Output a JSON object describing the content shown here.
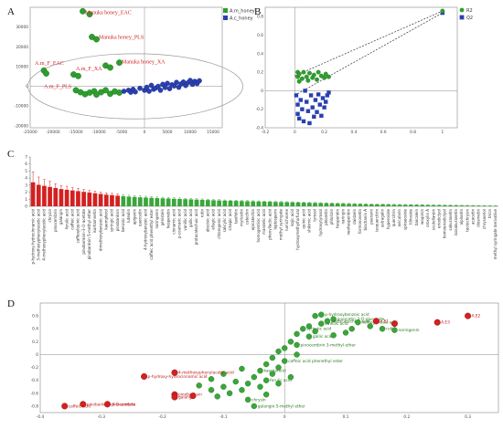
{
  "chart_data": [
    {
      "panel": "A",
      "type": "scatter",
      "xlim": [
        -25000,
        17000
      ],
      "ylim": [
        -21000,
        40000
      ],
      "xticks": [
        -25000,
        -20000,
        -15000,
        -10000,
        -5000,
        0,
        5000,
        10000,
        15000
      ],
      "yticks": [
        -20000,
        -10000,
        0,
        10000,
        20000,
        30000
      ],
      "ellipse": {
        "cx": -2000,
        "cy": 0,
        "rx": 23500,
        "ry": 16500
      },
      "legend": [
        {
          "name": "A.m_honey",
          "color": "#2e9e2e"
        },
        {
          "name": "A.c_honey",
          "color": "#2a3fb0"
        }
      ],
      "annotations": [
        {
          "text": "Manuka honey_EAC",
          "x": -13000,
          "y": 36500
        },
        {
          "text": "Manuka honey_PLS",
          "x": -10000,
          "y": 24000
        },
        {
          "text": "Manuka honey_XA",
          "x": -5000,
          "y": 11500
        },
        {
          "text": "A.m_F_EAC",
          "x": -24000,
          "y": 11000
        },
        {
          "text": "A.m_F_XA",
          "x": -15000,
          "y": 8000
        },
        {
          "text": "A.m_F_PLS",
          "x": -22000,
          "y": -1000
        }
      ],
      "series": [
        {
          "name": "A.m_honey",
          "points": [
            [
              -13500,
              38000
            ],
            [
              -12000,
              36500
            ],
            [
              -11500,
              25000
            ],
            [
              -10500,
              23800
            ],
            [
              -8500,
              10500
            ],
            [
              -7500,
              9500
            ],
            [
              -5500,
              12000
            ],
            [
              -22000,
              8000
            ],
            [
              -21500,
              6500
            ],
            [
              -15500,
              6000
            ],
            [
              -14500,
              5200
            ],
            [
              -15000,
              -2000
            ],
            [
              -14000,
              -3000
            ],
            [
              -13000,
              -4000
            ],
            [
              -12000,
              -3200
            ],
            [
              -11000,
              -2500
            ],
            [
              -10500,
              -4200
            ],
            [
              -9500,
              -3000
            ],
            [
              -8500,
              -2000
            ],
            [
              -7500,
              -3800
            ],
            [
              -6500,
              -2600
            ],
            [
              -5500,
              -3200
            ]
          ]
        },
        {
          "name": "A.c_honey",
          "points": [
            [
              -4500,
              -2500
            ],
            [
              -3500,
              -2000
            ],
            [
              -3000,
              -3000
            ],
            [
              -2500,
              -1500
            ],
            [
              -2000,
              -2800
            ],
            [
              -1000,
              -1000
            ],
            [
              0,
              -2000
            ],
            [
              500,
              -500
            ],
            [
              1000,
              -2500
            ],
            [
              1500,
              500
            ],
            [
              2000,
              -1500
            ],
            [
              2500,
              -800
            ],
            [
              3000,
              0
            ],
            [
              3500,
              -2000
            ],
            [
              4000,
              1000
            ],
            [
              4500,
              -600
            ],
            [
              5000,
              1500
            ],
            [
              5500,
              -1200
            ],
            [
              6000,
              800
            ],
            [
              6500,
              200
            ],
            [
              7000,
              2000
            ],
            [
              7500,
              -500
            ],
            [
              8000,
              1200
            ],
            [
              8500,
              2200
            ],
            [
              9000,
              400
            ],
            [
              9500,
              1800
            ],
            [
              10000,
              3000
            ],
            [
              10500,
              1000
            ],
            [
              11000,
              2500
            ],
            [
              11500,
              1400
            ],
            [
              12000,
              2800
            ]
          ]
        }
      ]
    },
    {
      "panel": "B",
      "type": "scatter",
      "xlim": [
        -0.2,
        1.1
      ],
      "ylim": [
        -0.4,
        0.9
      ],
      "xticks": [
        -0.2,
        0,
        0.2,
        0.4,
        0.6,
        0.8,
        1
      ],
      "yticks": [
        -0.4,
        -0.2,
        0,
        0.2,
        0.4,
        0.6,
        0.8
      ],
      "legend": [
        {
          "name": "R2",
          "color": "#2e9e2e"
        },
        {
          "name": "Q2",
          "color": "#2a3fb0"
        }
      ],
      "series": [
        {
          "name": "R2",
          "points": [
            [
              1.0,
              0.86
            ],
            [
              0.02,
              0.2
            ],
            [
              0.02,
              0.15
            ],
            [
              0.03,
              0.1
            ],
            [
              0.03,
              0.18
            ],
            [
              0.05,
              0.13
            ],
            [
              0.06,
              0.2
            ],
            [
              0.08,
              0.15
            ],
            [
              0.09,
              0.11
            ],
            [
              0.1,
              0.19
            ],
            [
              0.12,
              0.14
            ],
            [
              0.13,
              0.17
            ],
            [
              0.15,
              0.12
            ],
            [
              0.16,
              0.2
            ],
            [
              0.18,
              0.16
            ],
            [
              0.2,
              0.14
            ],
            [
              0.21,
              0.18
            ],
            [
              0.23,
              0.15
            ]
          ]
        },
        {
          "name": "Q2",
          "points": [
            [
              1.0,
              0.84
            ],
            [
              0.01,
              -0.05
            ],
            [
              0.02,
              -0.15
            ],
            [
              0.02,
              -0.25
            ],
            [
              0.03,
              -0.3
            ],
            [
              0.04,
              -0.1
            ],
            [
              0.05,
              -0.2
            ],
            [
              0.06,
              -0.33
            ],
            [
              0.07,
              0.0
            ],
            [
              0.08,
              -0.12
            ],
            [
              0.09,
              -0.22
            ],
            [
              0.1,
              -0.35
            ],
            [
              0.11,
              -0.05
            ],
            [
              0.12,
              -0.18
            ],
            [
              0.13,
              -0.28
            ],
            [
              0.14,
              -0.1
            ],
            [
              0.15,
              -0.23
            ],
            [
              0.16,
              -0.04
            ],
            [
              0.17,
              -0.15
            ],
            [
              0.18,
              -0.27
            ],
            [
              0.19,
              -0.08
            ],
            [
              0.2,
              -0.18
            ],
            [
              0.21,
              -0.12
            ],
            [
              0.22,
              -0.05
            ],
            [
              0.23,
              -0.02
            ]
          ]
        }
      ]
    },
    {
      "panel": "C",
      "type": "bar",
      "ylim": [
        0,
        7
      ],
      "yticks": [
        0,
        1,
        2,
        3,
        4,
        5,
        6,
        7
      ],
      "colors": {
        "high": "#d42020",
        "low": "#3aa63a"
      },
      "categories": [
        "p-hydroxy-hydrocinnamic acid",
        "3-methoxyphenylacetic acid",
        "4-methoxyphenylacetic acid",
        "chrysin",
        "pinocembrin",
        "galangin",
        "ferulic acid",
        "caffeic acid",
        "caffeoylquinic acid",
        "pinobanksin-3-O-acetate",
        "pinobanksin 5-methyl ether",
        "isorhamnetin",
        "dimethoxybenzoic acid",
        "kaempferol",
        "syringic acid",
        "pinobanksin",
        "benzoic acid",
        "luteolin",
        "apigenin",
        "quercetin",
        "4-hydroxybenzoic acid",
        "caffeic acid phenethyl ester",
        "naringenin",
        "genistein",
        "hesperetin",
        "cinnamic acid",
        "p-coumaric acid",
        "vanillic acid",
        "gallic acid",
        "protocatechuic acid",
        "rutin",
        "abscisic acid",
        "ellagic acid",
        "chlorogenic acid",
        "salicylic acid",
        "sinapic acid",
        "taxifolin",
        "myricetin",
        "catechin",
        "epicatechin",
        "homogentisic acid",
        "mandelic acid",
        "phenyllactic acid",
        "leptosperin",
        "methyl syringate",
        "lumichrome",
        "kojic acid",
        "hydroxymethylfurfural",
        "quinic acid",
        "shikimic acid",
        "tyrosol",
        "hydroxytyrosol",
        "phloretin",
        "phlorizin",
        "hesperidin",
        "naringin",
        "neohesperidin",
        "daidzein",
        "formononetin",
        "biochanin A",
        "puerarin",
        "isoquercitrin",
        "astragalin",
        "hyperoside",
        "quercitrin",
        "avicularin",
        "spiraeoside",
        "tiliroside",
        "baicalein",
        "wogonin",
        "oroxylin A",
        "scutellarein",
        "eriodictyol",
        "homoeriodictyol",
        "sakuranetin",
        "isosakuranetin",
        "alpinetin",
        "tectochrysin",
        "acacetin",
        "diosmetin",
        "chrysoeriol",
        "tricin",
        "methyl syringate derivative"
      ],
      "values": [
        3.4,
        3.05,
        2.9,
        2.75,
        2.6,
        2.45,
        2.35,
        2.25,
        2.15,
        2.05,
        1.95,
        1.85,
        1.75,
        1.65,
        1.58,
        1.5,
        1.43,
        1.37,
        1.32,
        1.28,
        1.24,
        1.2,
        1.16,
        1.13,
        1.1,
        1.07,
        1.04,
        1.01,
        0.98,
        0.95,
        0.92,
        0.89,
        0.86,
        0.83,
        0.8,
        0.78,
        0.76,
        0.74,
        0.72,
        0.7,
        0.68,
        0.66,
        0.64,
        0.62,
        0.6,
        0.58,
        0.56,
        0.54,
        0.52,
        0.5,
        0.48,
        0.46,
        0.44,
        0.42,
        0.4,
        0.38,
        0.36,
        0.34,
        0.32,
        0.3,
        0.28,
        0.27,
        0.26,
        0.25,
        0.24,
        0.23,
        0.22,
        0.21,
        0.2,
        0.19,
        0.18,
        0.17,
        0.16,
        0.15,
        0.14,
        0.13,
        0.12,
        0.11,
        0.1,
        0.09,
        0.08,
        0.07,
        0.06
      ],
      "errors": [
        1.5,
        1.1,
        0.9,
        0.8,
        0.6,
        0.5,
        0.5,
        0.4,
        0.4,
        0.35,
        0.3,
        0.3,
        0.28,
        0.25,
        0.25,
        0.22,
        0.22,
        0.2,
        0.2,
        0.18,
        0.18,
        0.17,
        0.16,
        0.15,
        0.15,
        0.14,
        0.14,
        0.13,
        0.13,
        0.12,
        0.12,
        0.12,
        0.11,
        0.11,
        0.1,
        0.1,
        0.1,
        0.1,
        0.09,
        0.09,
        0.09,
        0.08,
        0.08,
        0.08,
        0.08,
        0.07,
        0.07,
        0.07,
        0.07,
        0.06,
        0.06,
        0.06,
        0.06,
        0.06,
        0.05,
        0.05,
        0.05,
        0.05,
        0.05,
        0.05,
        0.04,
        0.04,
        0.04,
        0.04,
        0.04,
        0.04,
        0.04,
        0.03,
        0.03,
        0.03,
        0.03,
        0.03,
        0.03,
        0.03,
        0.03,
        0.02,
        0.02,
        0.02,
        0.02,
        0.02,
        0.02,
        0.02,
        0.02
      ],
      "high_count": 16
    },
    {
      "panel": "D",
      "type": "scatter",
      "xlim": [
        -0.4,
        0.35
      ],
      "ylim": [
        -0.9,
        0.8
      ],
      "xticks": [
        -0.4,
        -0.3,
        -0.2,
        -0.1,
        0,
        0.1,
        0.2,
        0.3
      ],
      "yticks": [
        -0.8,
        -0.6,
        -0.4,
        -0.2,
        0,
        0.2,
        0.4,
        0.6
      ],
      "series": [
        {
          "name": "red",
          "color": "#d42020",
          "points": [
            [
              0.3,
              0.6,
              "A.E2"
            ],
            [
              0.25,
              0.5,
              "A.E3"
            ],
            [
              0.15,
              0.52,
              "A.E1"
            ],
            [
              0.18,
              0.48,
              ""
            ],
            [
              -0.18,
              -0.28,
              "4-methoxyphenylacetic acid"
            ],
            [
              -0.23,
              -0.34,
              "p-hydroxy-hydrocinnamic acid"
            ],
            [
              -0.18,
              -0.62,
              "pinobanksin"
            ],
            [
              -0.18,
              -0.66,
              "galangin"
            ],
            [
              -0.15,
              -0.64,
              ""
            ],
            [
              -0.33,
              -0.77,
              "pinobanksin-3-O-acetate"
            ],
            [
              -0.29,
              -0.77,
              "pinocembrin"
            ],
            [
              -0.36,
              -0.8,
              "caffeic acid"
            ]
          ]
        },
        {
          "name": "green",
          "color": "#3aa63a",
          "points": [
            [
              0.06,
              0.62,
              "p-hydroxybenzoic acid"
            ],
            [
              0.05,
              0.6,
              ""
            ],
            [
              0.08,
              0.55,
              "quercetin 3-O-glucoside"
            ],
            [
              0.07,
              0.52,
              "protocatechuic acid"
            ],
            [
              0.06,
              0.48,
              "vanillic acid"
            ],
            [
              0.04,
              0.44,
              ""
            ],
            [
              0.03,
              0.4,
              "syringic acid"
            ],
            [
              0.05,
              0.36,
              ""
            ],
            [
              0.02,
              0.32,
              ""
            ],
            [
              0.04,
              0.28,
              "gallic acid"
            ],
            [
              0.12,
              0.5,
              "homogentisic acid"
            ],
            [
              0.14,
              0.44,
              ""
            ],
            [
              0.16,
              0.4,
              "rutin"
            ],
            [
              0.18,
              0.38,
              "naringenin"
            ],
            [
              0.1,
              0.34,
              ""
            ],
            [
              0.08,
              0.3,
              ""
            ],
            [
              0.11,
              0.4,
              ""
            ],
            [
              0.01,
              0.2,
              ""
            ],
            [
              0.02,
              0.15,
              "pinocembrin 3-methyl ether"
            ],
            [
              0.0,
              0.1,
              ""
            ],
            [
              -0.01,
              0.05,
              ""
            ],
            [
              0.02,
              0.0,
              ""
            ],
            [
              -0.02,
              -0.05,
              ""
            ],
            [
              0.0,
              -0.1,
              "caffeic acid phenethyl ester"
            ],
            [
              -0.03,
              -0.15,
              ""
            ],
            [
              -0.01,
              -0.2,
              ""
            ],
            [
              -0.04,
              -0.25,
              "kaempferol"
            ],
            [
              -0.02,
              -0.3,
              ""
            ],
            [
              -0.05,
              -0.35,
              ""
            ],
            [
              -0.03,
              -0.4,
              "ferulic acid"
            ],
            [
              -0.06,
              -0.45,
              ""
            ],
            [
              -0.04,
              -0.5,
              ""
            ],
            [
              -0.08,
              -0.42,
              ""
            ],
            [
              -0.07,
              -0.55,
              ""
            ],
            [
              -0.1,
              -0.5,
              ""
            ],
            [
              -0.09,
              -0.6,
              ""
            ],
            [
              -0.11,
              -0.65,
              ""
            ],
            [
              -0.06,
              -0.7,
              "chrysin"
            ],
            [
              -0.03,
              -0.62,
              ""
            ],
            [
              -0.12,
              -0.55,
              ""
            ],
            [
              -0.01,
              -0.45,
              ""
            ],
            [
              0.01,
              -0.35,
              ""
            ],
            [
              -0.14,
              -0.48,
              ""
            ],
            [
              -0.12,
              -0.38,
              ""
            ],
            [
              -0.1,
              -0.3,
              ""
            ],
            [
              -0.07,
              -0.22,
              ""
            ],
            [
              -0.05,
              -0.8,
              "galangin 5-methyl ether"
            ]
          ]
        }
      ]
    }
  ]
}
